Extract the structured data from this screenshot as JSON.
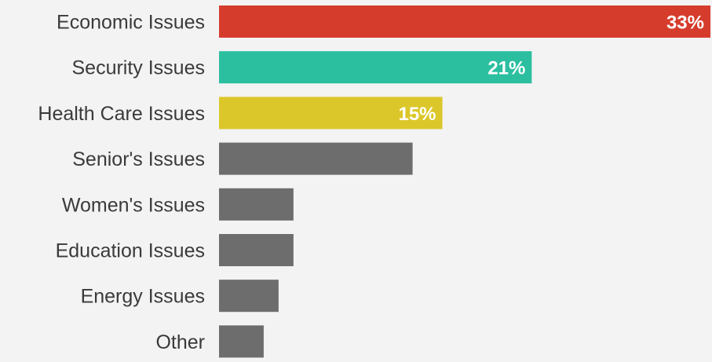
{
  "chart_data": {
    "type": "bar",
    "orientation": "horizontal",
    "categories": [
      "Economic Issues",
      "Security Issues",
      "Health Care Issues",
      "Senior's Issues",
      "Women's Issues",
      "Education Issues",
      "Energy Issues",
      "Other"
    ],
    "values": [
      33,
      21,
      15,
      13,
      5,
      5,
      4,
      3
    ],
    "data_labels": [
      "33%",
      "21%",
      "15%",
      "",
      "",
      "",
      "",
      ""
    ],
    "colors": [
      "#d63c2c",
      "#2bbfa0",
      "#dbc72a",
      "#6d6d6d",
      "#6d6d6d",
      "#6d6d6d",
      "#6d6d6d",
      "#6d6d6d"
    ],
    "xlim": [
      0,
      33
    ],
    "grid": false,
    "legend": "none",
    "title": "",
    "xlabel": "",
    "ylabel": ""
  }
}
